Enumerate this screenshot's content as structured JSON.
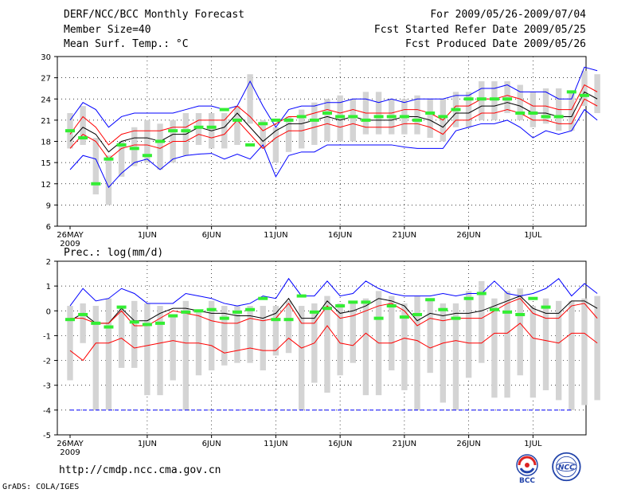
{
  "header": {
    "title": "DERF/NCC/BCC Monthly Forecast",
    "member_size": "Member Size=40",
    "variable": "Mean Surf. Temp.: °C",
    "period": "For 2009/05/26-2009/07/04",
    "start_date": "Fcst Started Refer Date 2009/05/25",
    "produced_date": "Fcst Produced Date 2009/05/26"
  },
  "footer": {
    "url": "http://cmdp.ncc.cma.gov.cn",
    "credit": "GrADS: COLA/IGES"
  },
  "logos": {
    "bcc": "BCC",
    "ncc": "NCC"
  },
  "colors": {
    "ensemble_max": "#0000ff",
    "ensemble_mean": "#000000",
    "spread": "#ff0000",
    "members": "#ff0000",
    "observed": "#33ee33",
    "box": "#d4d4d4",
    "grid": "#000000"
  },
  "chart_data": [
    {
      "type": "line",
      "title": "Mean Surf. Temp.: °C",
      "days": 40,
      "x_ticks": [
        {
          "label": "26MAY",
          "day": 0
        },
        {
          "label": "1JUN",
          "day": 6
        },
        {
          "label": "6JUN",
          "day": 11
        },
        {
          "label": "11JUN",
          "day": 16
        },
        {
          "label": "16JUN",
          "day": 21
        },
        {
          "label": "21JUN",
          "day": 26
        },
        {
          "label": "26JUN",
          "day": 31
        },
        {
          "label": "1JUL",
          "day": 36
        }
      ],
      "x_sublabel": "2009",
      "ylim": [
        6,
        30
      ],
      "yticks": [
        6,
        9,
        12,
        15,
        18,
        21,
        24,
        27,
        30
      ],
      "series": [
        {
          "name": "max",
          "color": "#0000ff",
          "values": [
            14,
            16,
            15.5,
            11.5,
            13.5,
            15,
            15.5,
            14,
            15.5,
            16,
            16.2,
            16.3,
            15.5,
            16.2,
            15.5,
            17.5,
            13,
            16,
            16.5,
            16.5,
            17.5,
            17.5,
            17.5,
            17.5,
            17.5,
            17.5,
            17.2,
            17,
            17,
            17,
            19.5,
            20,
            20.5,
            20.5,
            21,
            20,
            18.5,
            19.5,
            19,
            19.5,
            22.5,
            21
          ]
        },
        {
          "name": "upper",
          "color": "#0000ff",
          "values": [
            21,
            23.5,
            22.5,
            20,
            21.5,
            22,
            22,
            22,
            22,
            22.5,
            23,
            23,
            22.5,
            23,
            26.5,
            23,
            20,
            22.5,
            23,
            23,
            23.5,
            23.5,
            24,
            24,
            23.5,
            24,
            23.5,
            24,
            24,
            24,
            24.5,
            24.5,
            25.5,
            25.5,
            26,
            25,
            25,
            25,
            24,
            24,
            28.5,
            28
          ]
        },
        {
          "name": "mean",
          "color": "#000000",
          "values": [
            18,
            20,
            19,
            16.5,
            18,
            18.5,
            18.5,
            18,
            19,
            19,
            20,
            19.5,
            20,
            22,
            20,
            18,
            19.5,
            20.5,
            20.5,
            21,
            21.5,
            21,
            21.5,
            21,
            21,
            21,
            21.5,
            21.5,
            21,
            20,
            22,
            22,
            23,
            23,
            23.5,
            23,
            22,
            22,
            21.5,
            21.5,
            25,
            24
          ]
        },
        {
          "name": "spread_hi",
          "color": "#ff0000",
          "values": [
            19,
            21.5,
            20,
            17.5,
            19,
            19.5,
            19.5,
            19.5,
            20,
            20,
            21,
            21,
            21,
            23,
            21.5,
            19.5,
            20.5,
            21.5,
            21.5,
            22,
            22.5,
            22,
            22.5,
            22,
            22,
            22,
            22.5,
            22.5,
            22,
            21,
            23,
            23,
            24,
            24,
            24.5,
            24,
            23,
            23,
            22.5,
            22.5,
            26,
            25
          ]
        },
        {
          "name": "spread_lo",
          "color": "#ff0000",
          "values": [
            17,
            19,
            18,
            15.5,
            17,
            17.5,
            17.5,
            17,
            18,
            18,
            19,
            18.5,
            19,
            21,
            19,
            17,
            18.5,
            19.5,
            19.5,
            20,
            20.5,
            20,
            20.5,
            20,
            20,
            20,
            20.5,
            20.5,
            20,
            19,
            21,
            21,
            22,
            22,
            22.5,
            22,
            21,
            21,
            20.5,
            20.5,
            24,
            23
          ]
        }
      ],
      "boxes": [
        [
          17,
          22
        ],
        [
          17.5,
          23
        ],
        [
          10.5,
          18.5
        ],
        [
          9,
          16
        ],
        [
          13,
          18
        ],
        [
          14.5,
          20
        ],
        [
          15,
          21
        ],
        [
          14,
          20.5
        ],
        [
          15,
          21
        ],
        [
          16,
          22
        ],
        [
          17.5,
          22
        ],
        [
          17,
          22
        ],
        [
          17,
          22
        ],
        [
          17.5,
          23
        ],
        [
          20.5,
          27.5
        ],
        [
          17,
          21
        ],
        [
          15,
          20
        ],
        [
          16.5,
          21.5
        ],
        [
          17,
          22.5
        ],
        [
          17.5,
          23.5
        ],
        [
          18,
          24
        ],
        [
          18,
          24.5
        ],
        [
          18,
          24
        ],
        [
          19,
          25
        ],
        [
          19,
          25
        ],
        [
          19,
          24
        ],
        [
          19,
          24
        ],
        [
          19,
          24.5
        ],
        [
          18.5,
          24
        ],
        [
          18,
          24
        ],
        [
          20,
          25
        ],
        [
          20,
          25
        ],
        [
          21,
          26.5
        ],
        [
          21,
          26.5
        ],
        [
          22,
          26.5
        ],
        [
          21,
          26
        ],
        [
          20,
          25
        ],
        [
          20.5,
          25.5
        ],
        [
          19.5,
          25.5
        ],
        [
          19.5,
          25
        ],
        [
          23,
          28
        ],
        [
          22,
          27.5
        ]
      ],
      "observed": [
        19.5,
        18.5,
        12,
        15.5,
        17.5,
        17,
        16,
        18,
        19.5,
        19.5,
        20,
        20,
        22.5,
        21,
        17.5,
        20.5,
        21,
        21,
        21.5,
        21,
        22,
        21.5,
        21.5,
        21,
        21.5,
        21.5,
        21.5,
        21,
        22,
        21.5,
        22.5,
        24,
        24,
        24,
        24,
        22,
        22,
        21.5,
        21.5,
        25,
        24.5
      ]
    },
    {
      "type": "line",
      "title": "Prec.: log(mm/d)",
      "days": 40,
      "x_ticks": [
        {
          "label": "26MAY",
          "day": 0
        },
        {
          "label": "1JUN",
          "day": 6
        },
        {
          "label": "6JUN",
          "day": 11
        },
        {
          "label": "11JUN",
          "day": 16
        },
        {
          "label": "16JUN",
          "day": 21
        },
        {
          "label": "21JUN",
          "day": 26
        },
        {
          "label": "26JUN",
          "day": 31
        },
        {
          "label": "1JUL",
          "day": 36
        }
      ],
      "x_sublabel": "2009",
      "ylim": [
        -5,
        2
      ],
      "yticks": [
        -5,
        -4,
        -3,
        -2,
        -1,
        0,
        1,
        2
      ],
      "series": [
        {
          "name": "max",
          "color": "#0000ff",
          "values": [
            0.2,
            0.9,
            0.4,
            0.5,
            0.9,
            0.7,
            0.3,
            0.3,
            0.3,
            0.7,
            0.6,
            0.5,
            0.3,
            0.2,
            0.3,
            0.6,
            0.5,
            1.3,
            0.6,
            0.6,
            1.2,
            0.6,
            0.7,
            1.2,
            0.9,
            0.7,
            0.6,
            0.6,
            0.6,
            0.7,
            0.6,
            0.7,
            0.7,
            1.2,
            0.7,
            0.6,
            0.7,
            0.9,
            1.3,
            0.6,
            1.1,
            0.7
          ]
        },
        {
          "name": "mean",
          "color": "#000000",
          "values": [
            -0.4,
            -0.1,
            -0.5,
            -0.5,
            0.1,
            -0.4,
            -0.4,
            -0.1,
            0.1,
            0.1,
            0,
            -0.1,
            -0.1,
            -0.2,
            -0.2,
            -0.3,
            -0.1,
            0.5,
            -0.3,
            -0.3,
            0.4,
            -0.1,
            0,
            0.2,
            0.5,
            0.4,
            0.2,
            -0.4,
            -0.1,
            -0.2,
            -0.1,
            -0.1,
            0,
            0.2,
            0.4,
            0.6,
            0.1,
            -0.1,
            -0.1,
            0.4,
            0.4,
            0.1
          ]
        },
        {
          "name": "spread_hi",
          "color": "#ff0000",
          "values": [
            -0.3,
            -0.3,
            -0.5,
            -0.5,
            0,
            -0.6,
            -0.6,
            -0.3,
            0,
            -0.1,
            -0.2,
            -0.4,
            -0.5,
            -0.5,
            -0.3,
            -0.4,
            -0.3,
            0.3,
            -0.5,
            -0.5,
            0.2,
            -0.3,
            -0.2,
            0,
            0.2,
            0.3,
            0,
            -0.6,
            -0.3,
            -0.4,
            -0.3,
            -0.3,
            -0.3,
            0,
            0.3,
            0.5,
            -0.1,
            -0.3,
            -0.3,
            0.2,
            0.3,
            -0.3
          ]
        },
        {
          "name": "spread_lo",
          "color": "#ff0000",
          "values": [
            -1.6,
            -2,
            -1.3,
            -1.3,
            -1.1,
            -1.5,
            -1.4,
            -1.3,
            -1.2,
            -1.3,
            -1.3,
            -1.4,
            -1.7,
            -1.6,
            -1.5,
            -1.6,
            -1.6,
            -1.1,
            -1.5,
            -1.3,
            -0.6,
            -1.3,
            -1.4,
            -0.9,
            -1.3,
            -1.3,
            -1.1,
            -1.2,
            -1.5,
            -1.3,
            -1.2,
            -1.3,
            -1.3,
            -0.9,
            -0.9,
            -0.5,
            -1.1,
            -1.2,
            -1.3,
            -0.9,
            -0.9,
            -1.3
          ]
        }
      ],
      "boxes": [
        [
          -2.8,
          0.2
        ],
        [
          -1.3,
          0.3
        ],
        [
          -4,
          0.2
        ],
        [
          -4,
          0.5
        ],
        [
          -2.3,
          0.2
        ],
        [
          -2.3,
          0.4
        ],
        [
          -3.4,
          0.3
        ],
        [
          -3.4,
          0.2
        ],
        [
          -2.8,
          -0.2
        ],
        [
          -4,
          0.4
        ],
        [
          -2.6,
          0
        ],
        [
          -2.4,
          0.4
        ],
        [
          -2.2,
          0.2
        ],
        [
          -2.1,
          0.2
        ],
        [
          -2.1,
          0.2
        ],
        [
          -2.4,
          0.2
        ],
        [
          -1.8,
          0.2
        ],
        [
          -1.7,
          0.4
        ],
        [
          -4,
          0.2
        ],
        [
          -2.9,
          0.3
        ],
        [
          -3.3,
          0.6
        ],
        [
          -2.6,
          0.3
        ],
        [
          -2.1,
          0.3
        ],
        [
          -3.4,
          0.5
        ],
        [
          -3.4,
          0.8
        ],
        [
          -2.4,
          0.6
        ],
        [
          -3.2,
          0.3
        ],
        [
          -4,
          0.6
        ],
        [
          -2.5,
          0.4
        ],
        [
          -3.7,
          0.3
        ],
        [
          -4,
          0.3
        ],
        [
          -2.7,
          0.8
        ],
        [
          -2.1,
          1.2
        ],
        [
          -3.5,
          0.5
        ],
        [
          -3.5,
          0.8
        ],
        [
          -2.6,
          0.9
        ],
        [
          -3.5,
          0.2
        ],
        [
          -3.2,
          0.5
        ],
        [
          -3.6,
          0.4
        ],
        [
          -4,
          0.4
        ],
        [
          -3.8,
          0.5
        ],
        [
          -3.6,
          0.6
        ]
      ],
      "observed": [
        -0.35,
        -0.15,
        -0.5,
        -0.65,
        0.15,
        -0.45,
        -0.55,
        -0.5,
        -0.2,
        -0.05,
        0,
        0.05,
        -0.3,
        -0.05,
        0.05,
        0.5,
        -0.35,
        -0.35,
        0.6,
        -0.05,
        0.1,
        0.2,
        0.35,
        0.35,
        -0.3,
        0.2,
        -0.25,
        -0.15,
        0.45,
        0.05,
        -0.3,
        0.5,
        0.7,
        0.05,
        -0.05,
        -0.15,
        0.5,
        0.15
      ]
    }
  ]
}
